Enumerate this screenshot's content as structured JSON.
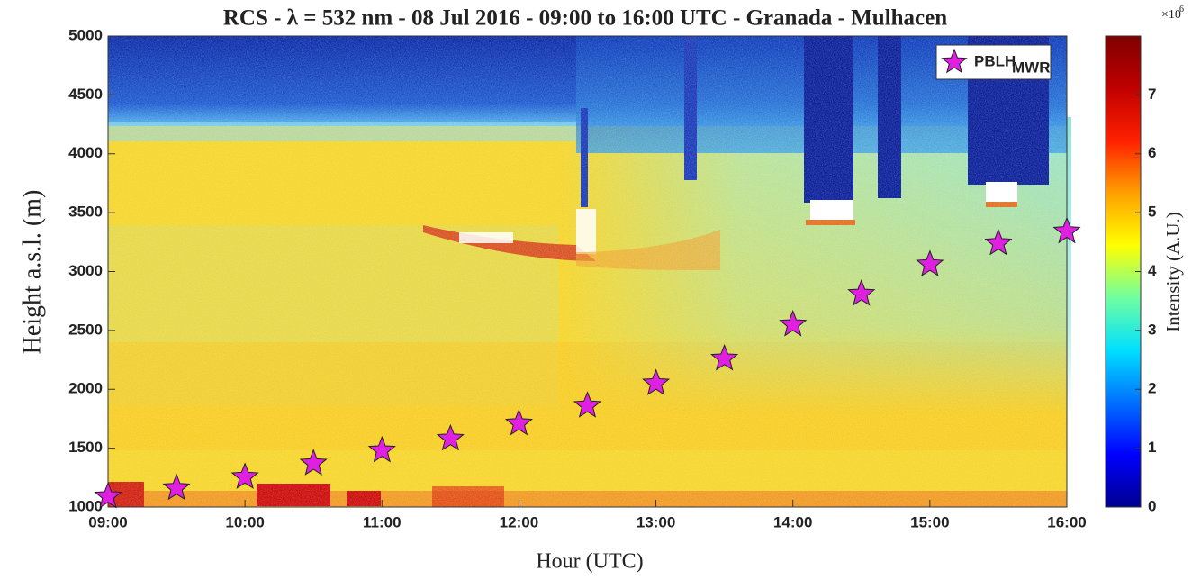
{
  "chart_data": {
    "type": "scatter",
    "title": "RCS - λ = 532 nm - 08 Jul 2016 - 09:00 to 16:00 UTC - Granada - Mulhacen",
    "x_label": "Hour (UTC)",
    "y_label": "Height a.s.l. (m)",
    "x": [
      9,
      9.5,
      10,
      10.5,
      11,
      11.5,
      12,
      12.5,
      13,
      13.5,
      14,
      14.5,
      15,
      15.5,
      16
    ],
    "series": [
      {
        "name": "PBLH",
        "name_subscript": "MWR",
        "color": "#e020e0",
        "values": [
          1090,
          1160,
          1255,
          1370,
          1480,
          1580,
          1710,
          1860,
          2050,
          2260,
          2550,
          2810,
          3060,
          3240,
          3340
        ]
      }
    ],
    "xlim": [
      9,
      16
    ],
    "xticks": [
      {
        "value": 9,
        "label": "09:00"
      },
      {
        "value": 10,
        "label": "10:00"
      },
      {
        "value": 11,
        "label": "11:00"
      },
      {
        "value": 12,
        "label": "12:00"
      },
      {
        "value": 13,
        "label": "13:00"
      },
      {
        "value": 14,
        "label": "14:00"
      },
      {
        "value": 15,
        "label": "15:00"
      },
      {
        "value": 16,
        "label": "16:00"
      }
    ],
    "ylim": [
      1000,
      5000
    ],
    "yticks": [
      1000,
      1500,
      2000,
      2500,
      3000,
      3500,
      4000,
      4500,
      5000
    ],
    "legend": "upper right",
    "colorbar": {
      "label": "Intensity (A.U.)",
      "multiplier_base": "×10",
      "multiplier_exponent": "6",
      "clim": [
        0,
        8
      ],
      "ticks": [
        0,
        1,
        2,
        3,
        4,
        5,
        6,
        7
      ],
      "colormap": [
        "#00008f",
        "#0000ff",
        "#0070ff",
        "#00e0ff",
        "#70ffa0",
        "#ffff00",
        "#ffa000",
        "#ff2000",
        "#c00000",
        "#800000"
      ]
    }
  }
}
